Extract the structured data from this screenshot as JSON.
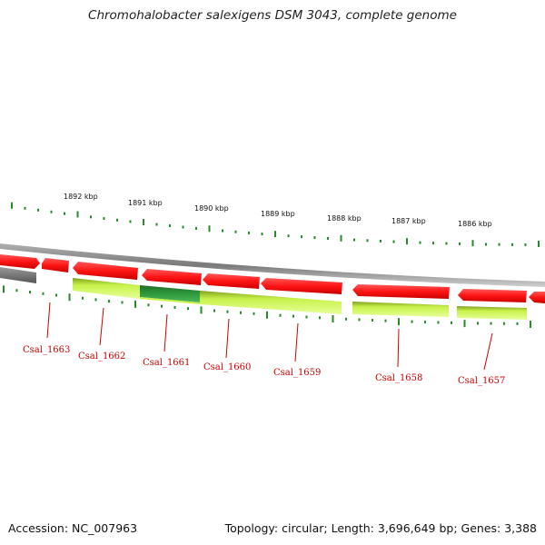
{
  "title": "Chromohalobacter salexigens DSM 3043, complete genome",
  "footer": {
    "accession": "Accession: NC_007963",
    "topology": "Topology: circular; Length: 3,696,649 bp; Genes: 3,388"
  },
  "colors": {
    "forward_gene": "#ff1a1a",
    "reverse_gene": "#b9f23a",
    "highlight_gene": "#2e8b3a",
    "backbone": "#8c8c8c",
    "ticks": "#2a8a2a",
    "label": "#cc0000"
  },
  "kbp_labels": [
    "1892 kbp",
    "1891 kbp",
    "1890 kbp",
    "1889 kbp",
    "1888 kbp",
    "1887 kbp",
    "1886 kbp"
  ],
  "gene_labels": [
    "Csal_1663",
    "Csal_1662",
    "Csal_1661",
    "Csal_1660",
    "Csal_1659",
    "Csal_1658",
    "Csal_1657"
  ]
}
